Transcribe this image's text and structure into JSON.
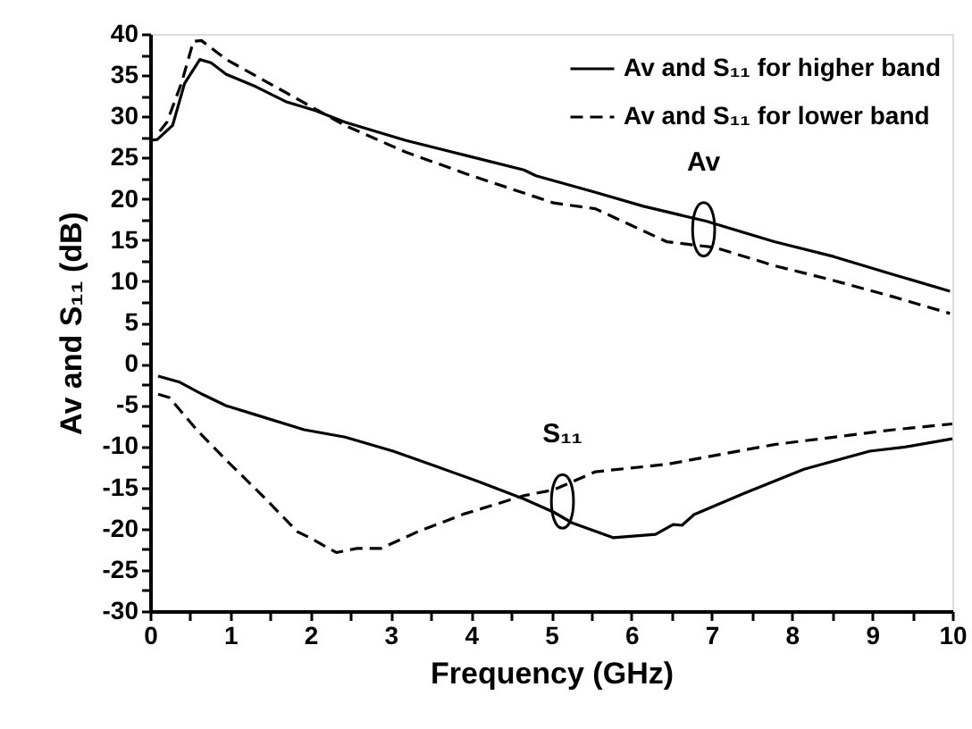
{
  "chart_data": {
    "type": "line",
    "xlabel": "Frequency (GHz)",
    "ylabel": "Av and S₁₁ (dB)",
    "xlim": [
      0,
      10
    ],
    "ylim": [
      -30,
      40
    ],
    "xticks": [
      0,
      {
        "value": 0.5,
        "label": null
      },
      1,
      {
        "value": 1.5,
        "label": null
      },
      2,
      {
        "value": 2.5,
        "label": null
      },
      3,
      {
        "value": 3.5,
        "label": null
      },
      4,
      {
        "value": 4.5,
        "label": null
      },
      5,
      {
        "value": 5.5,
        "label": null
      },
      6,
      {
        "value": 6.5,
        "label": null
      },
      7,
      {
        "value": 7.5,
        "label": null
      },
      8,
      {
        "value": 8.5,
        "label": null
      },
      9,
      {
        "value": 9.5,
        "label": null
      },
      10
    ],
    "yticks": [
      -30,
      {
        "value": -27.5,
        "label": null
      },
      -25,
      {
        "value": -22.5,
        "label": null
      },
      -20,
      {
        "value": -17.5,
        "label": null
      },
      -15,
      {
        "value": -12.5,
        "label": null
      },
      -10,
      {
        "value": -7.5,
        "label": null
      },
      -5,
      {
        "value": -2.5,
        "label": null
      },
      0,
      {
        "value": 2.5,
        "label": null
      },
      5,
      {
        "value": 7.5,
        "label": null
      },
      10,
      {
        "value": 12.5,
        "label": null
      },
      15,
      {
        "value": 17.5,
        "label": null
      },
      20,
      {
        "value": 22.5,
        "label": null
      },
      25,
      {
        "value": 27.5,
        "label": null
      },
      30,
      {
        "value": 32.5,
        "label": null
      },
      35,
      {
        "value": 37.5,
        "label": null
      },
      40
    ],
    "grid": false,
    "legend": "top right",
    "marker": "none",
    "series": [
      {
        "name": "Av and S₁₁ for higher band",
        "color": "#000000",
        "line_style": "solid",
        "x": [
          0.0,
          0.09,
          0.28,
          0.43,
          0.62,
          0.76,
          0.95,
          1.32,
          1.69,
          2.06,
          2.43,
          3.18,
          3.92,
          4.66,
          4.81,
          5.55,
          6.15,
          6.93,
          7.78,
          8.52,
          9.27,
          9.97
        ],
        "values": [
          27.1,
          27.2,
          28.9,
          34.0,
          36.9,
          36.5,
          35.1,
          33.6,
          31.8,
          30.7,
          29.3,
          27.1,
          25.3,
          23.5,
          22.8,
          20.8,
          19.1,
          17.3,
          14.8,
          13.0,
          10.8,
          8.8
        ]
      },
      {
        "name": "Av and S₁₁ for lower band",
        "color": "#000000",
        "line_style": "dashed",
        "x": [
          0.12,
          0.21,
          0.39,
          0.54,
          0.64,
          0.95,
          1.69,
          2.43,
          3.18,
          3.92,
          5.03,
          5.55,
          6.44,
          7.04,
          7.78,
          8.52,
          9.27,
          9.97
        ],
        "values": [
          28.2,
          29.3,
          34.0,
          39.1,
          39.2,
          36.9,
          32.9,
          28.9,
          25.7,
          23.1,
          19.5,
          18.8,
          14.8,
          14.1,
          11.9,
          10.1,
          8.1,
          6.1
        ]
      },
      {
        "color": "#000000",
        "line_style": "solid",
        "x": [
          0.1,
          0.36,
          0.65,
          0.95,
          1.32,
          1.92,
          2.43,
          3.03,
          3.55,
          4.07,
          4.66,
          5.03,
          5.26,
          5.77,
          6.3,
          6.52,
          6.63,
          6.78,
          7.41,
          8.15,
          8.97,
          9.41,
          10.0
        ],
        "values": [
          -1.5,
          -2.2,
          -3.7,
          -5.1,
          -6.2,
          -8.0,
          -8.9,
          -10.6,
          -12.4,
          -14.2,
          -16.4,
          -18.0,
          -19.3,
          -21.1,
          -20.7,
          -19.5,
          -19.6,
          -18.3,
          -15.7,
          -12.8,
          -10.6,
          -10.1,
          -9.1
        ]
      },
      {
        "color": "#000000",
        "line_style": "dashed",
        "x": [
          0.1,
          0.24,
          0.58,
          0.95,
          1.4,
          1.84,
          1.99,
          2.32,
          2.58,
          2.88,
          3.33,
          3.92,
          4.66,
          5.03,
          5.55,
          6.44,
          7.78,
          9.27,
          10.0
        ],
        "values": [
          -3.7,
          -4.1,
          -8.0,
          -11.7,
          -16.0,
          -20.4,
          -21.1,
          -22.9,
          -22.4,
          -22.4,
          -20.4,
          -18.2,
          -16.0,
          -15.3,
          -13.1,
          -12.2,
          -9.8,
          -8.0,
          -7.3
        ]
      }
    ],
    "annotations": [
      {
        "text": "Av",
        "x": 6.9,
        "y": 16.3
      },
      {
        "text": "S₁₁",
        "x": 5.14,
        "y": -16.7
      }
    ]
  }
}
